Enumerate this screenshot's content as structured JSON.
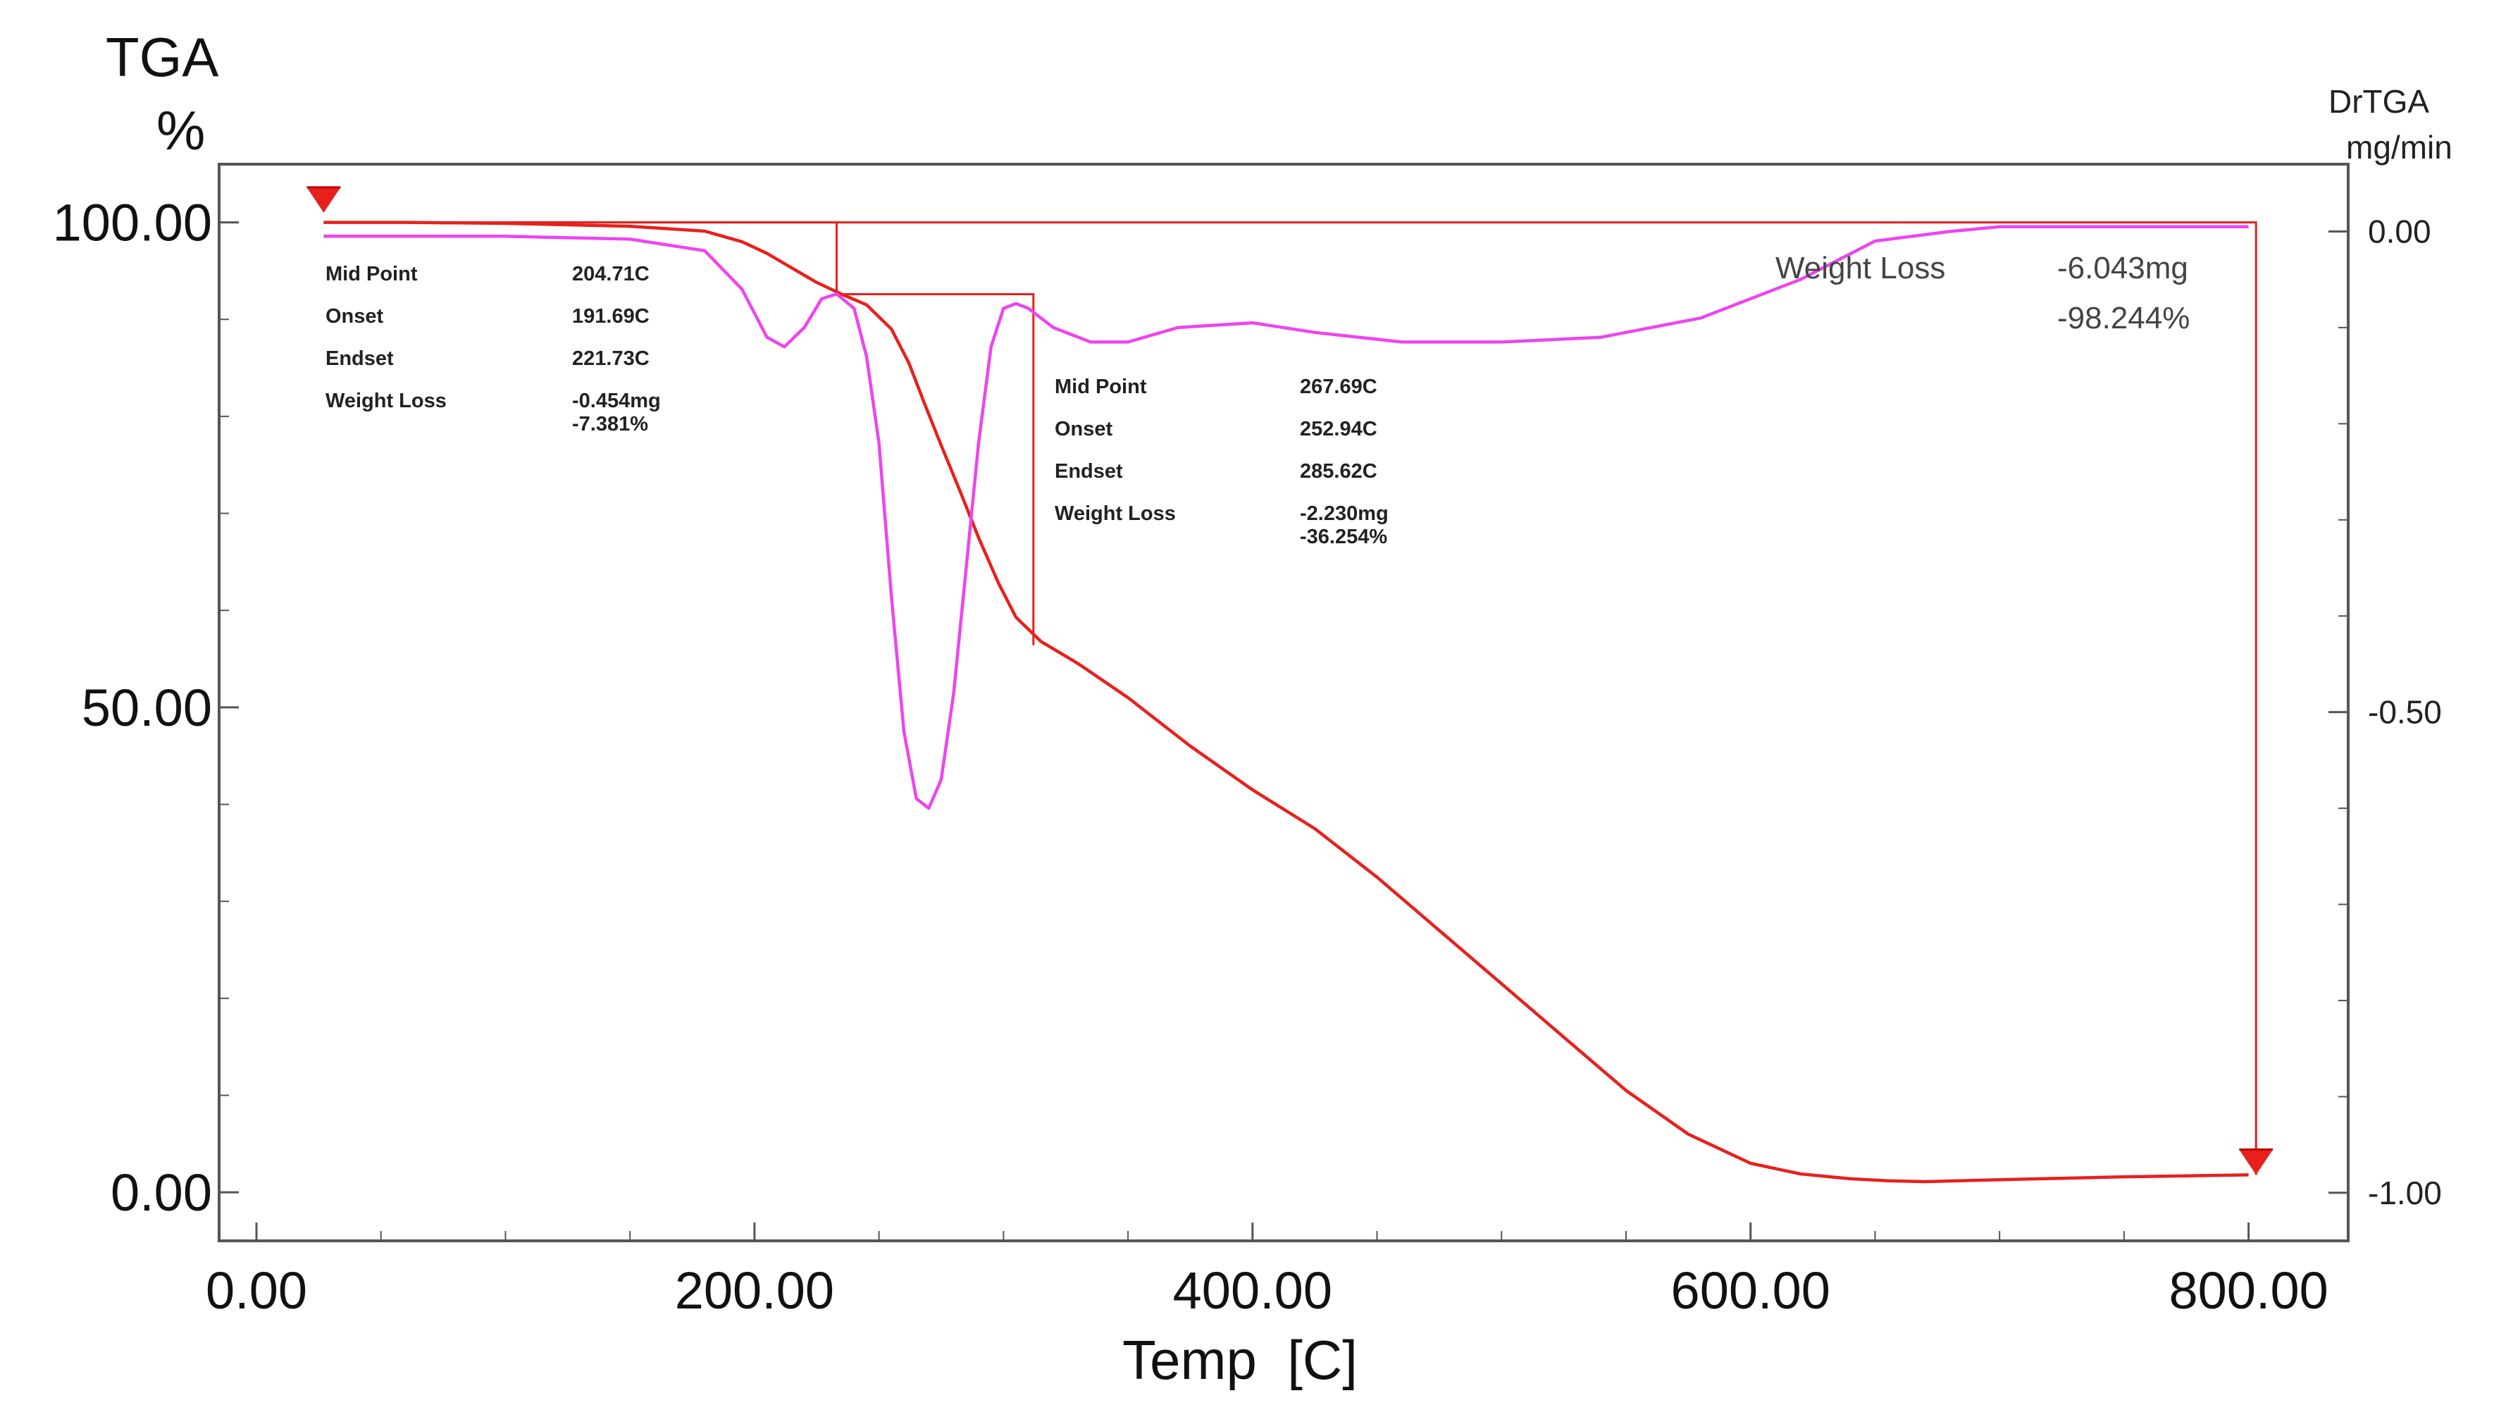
{
  "chart_data": {
    "type": "line",
    "title": "",
    "xlabel": "Temp  [C]",
    "ylabel_left": "TGA",
    "ylabel_left_unit": "%",
    "ylabel_right": "DrTGA",
    "ylabel_right_unit": "mg/min",
    "xlim": [
      -15,
      840
    ],
    "ylim_left": [
      -5,
      106
    ],
    "ylim_right": [
      -1.05,
      0.07
    ],
    "x_ticks": [
      "0.00",
      "200.00",
      "400.00",
      "600.00",
      "800.00"
    ],
    "x_tick_values": [
      0,
      200,
      400,
      600,
      800
    ],
    "y_left_ticks": [
      "100.00",
      "50.00",
      "0.00"
    ],
    "y_left_tick_values": [
      100,
      50,
      0
    ],
    "y_right_ticks": [
      "0.00",
      "-0.50",
      "-1.00"
    ],
    "y_right_tick_values": [
      0,
      -0.5,
      -1.0
    ],
    "grid": false,
    "colors": {
      "tga": "#e8201c",
      "drtga": "#ee44ee",
      "marker": "#e8201c",
      "frame": "#555555"
    },
    "series": [
      {
        "axis": "left",
        "x": [
          27,
          60,
          100,
          150,
          180,
          195,
          205,
          215,
          225,
          235,
          245,
          255,
          262,
          268,
          275,
          283,
          290,
          298,
          305,
          315,
          330,
          350,
          375,
          400,
          425,
          450,
          475,
          500,
          525,
          550,
          575,
          600,
          620,
          640,
          655,
          670,
          700,
          750,
          800
        ],
        "y": [
          100,
          100,
          99.9,
          99.6,
          99.1,
          98.0,
          96.8,
          95.3,
          93.8,
          92.6,
          91.5,
          89.0,
          85.5,
          81.5,
          77.0,
          72.0,
          67.5,
          62.8,
          59.3,
          56.8,
          54.5,
          51.0,
          46.0,
          41.5,
          37.5,
          32.5,
          27.0,
          21.5,
          16.0,
          10.5,
          6.0,
          3.0,
          1.9,
          1.4,
          1.2,
          1.1,
          1.3,
          1.6,
          1.8
        ]
      },
      {
        "axis": "right",
        "x": [
          27,
          100,
          150,
          180,
          195,
          205,
          212,
          220,
          227,
          233,
          240,
          245,
          250,
          255,
          260,
          265,
          270,
          275,
          280,
          285,
          290,
          295,
          300,
          305,
          310,
          320,
          335,
          350,
          370,
          400,
          425,
          460,
          500,
          540,
          580,
          620,
          650,
          680,
          700,
          750,
          800
        ],
        "y": [
          -0.005,
          -0.005,
          -0.008,
          -0.02,
          -0.06,
          -0.11,
          -0.12,
          -0.1,
          -0.07,
          -0.065,
          -0.08,
          -0.13,
          -0.22,
          -0.38,
          -0.52,
          -0.59,
          -0.6,
          -0.57,
          -0.48,
          -0.35,
          -0.22,
          -0.12,
          -0.08,
          -0.075,
          -0.08,
          -0.1,
          -0.115,
          -0.115,
          -0.1,
          -0.095,
          -0.105,
          -0.115,
          -0.115,
          -0.11,
          -0.09,
          -0.05,
          -0.01,
          0.0,
          0.005,
          0.005,
          0.005
        ]
      }
    ],
    "step_boxes": [
      {
        "x1": 27,
        "x2": 233,
        "y_top": 100,
        "y_bottom": 92.6
      },
      {
        "x1": 233,
        "x2": 312,
        "y_top": 92.6,
        "y_bottom": 56.4
      },
      {
        "x1": 27,
        "x2": 803,
        "y_top": 100,
        "y_bottom": 1.8
      }
    ],
    "markers": [
      {
        "x": 27,
        "y": 101
      },
      {
        "x": 803,
        "y": 1.8
      }
    ],
    "annotations": [
      {
        "id": "step1",
        "rows": [
          {
            "label": "Mid Point",
            "value": "204.71C"
          },
          {
            "label": "Onset",
            "value": "191.69C"
          },
          {
            "label": "Endset",
            "value": "221.73C"
          },
          {
            "label": "Weight Loss",
            "value": "-0.454mg"
          },
          {
            "label": "",
            "value": "-7.381%"
          }
        ]
      },
      {
        "id": "step2",
        "rows": [
          {
            "label": "Mid Point",
            "value": "267.69C"
          },
          {
            "label": "Onset",
            "value": "252.94C"
          },
          {
            "label": "Endset",
            "value": "285.62C"
          },
          {
            "label": "Weight Loss",
            "value": "-2.230mg"
          },
          {
            "label": "",
            "value": "-36.254%"
          }
        ]
      },
      {
        "id": "total",
        "rows": [
          {
            "label": "Weight Loss",
            "value": "-6.043mg"
          },
          {
            "label": "",
            "value": "-98.244%"
          }
        ]
      }
    ]
  }
}
